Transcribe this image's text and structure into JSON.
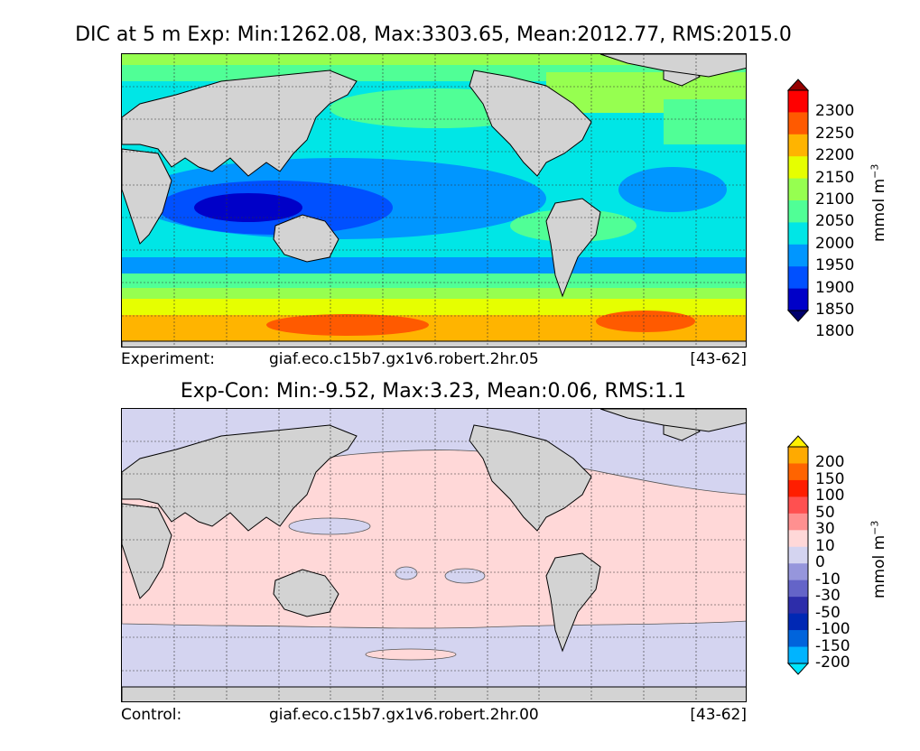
{
  "panel1": {
    "title": "DIC at 5 m Exp: Min:1262.08, Max:3303.65, Mean:2012.77, RMS:2015.0",
    "footer_label": "Experiment:",
    "footer_run": "giaf.eco.c15b7.gx1v6.robert.2hr.05",
    "footer_years": "[43-62]",
    "colorbar_label": "mmol m",
    "colorbar_exp": "−3"
  },
  "panel2": {
    "title": "Exp-Con: Min:-9.52, Max:3.23, Mean:0.06, RMS:1.1",
    "footer_label": "Control:",
    "footer_run": "giaf.eco.c15b7.gx1v6.robert.2hr.00",
    "footer_years": "[43-62]",
    "colorbar_label": "mmol m",
    "colorbar_exp": "−3"
  },
  "chart_data": [
    {
      "type": "heatmap",
      "title": "DIC at 5 m Exp: Min:1262.08, Max:3303.65, Mean:2012.77, RMS:2015.0",
      "colorbar": {
        "levels": [
          1800,
          1850,
          1900,
          1950,
          2000,
          2050,
          2100,
          2150,
          2200,
          2250,
          2300
        ],
        "tick_labels": [
          "2300",
          "2250",
          "2200",
          "2150",
          "2100",
          "2050",
          "2000",
          "1950",
          "1900",
          "1850",
          "1800"
        ],
        "colors": [
          "#00006e",
          "#0000c8",
          "#0050ff",
          "#0096ff",
          "#00e6e6",
          "#50ff96",
          "#96ff50",
          "#e6ff00",
          "#ffb400",
          "#ff5a00",
          "#ff0000",
          "#960000"
        ],
        "extend": "both",
        "units": "mmol m^-3"
      },
      "stats": {
        "min": 1262.08,
        "max": 3303.65,
        "mean": 2012.77,
        "rms": 2015.0
      },
      "grid": true
    },
    {
      "type": "heatmap",
      "title": "Exp-Con: Min:-9.52, Max:3.23, Mean:0.06, RMS:1.1",
      "colorbar": {
        "levels": [
          -200,
          -150,
          -100,
          -50,
          -30,
          -10,
          0,
          10,
          30,
          50,
          100,
          150,
          200
        ],
        "tick_labels": [
          "200",
          "150",
          "100",
          "50",
          "30",
          "10",
          "0",
          "-10",
          "-30",
          "-50",
          "-100",
          "-150",
          "-200"
        ],
        "colors": [
          "#00e6ff",
          "#00b4ff",
          "#0064dc",
          "#0028b4",
          "#2d2daa",
          "#6464c8",
          "#9696dc",
          "#d4d4f0",
          "#ffd8d8",
          "#ff9090",
          "#ff5050",
          "#ff1e00",
          "#ff6400",
          "#ffaa00",
          "#fff000"
        ],
        "extend": "both",
        "units": "mmol m^-3"
      },
      "stats": {
        "min": -9.52,
        "max": 3.23,
        "mean": 0.06,
        "rms": 1.1
      },
      "grid": true
    }
  ]
}
